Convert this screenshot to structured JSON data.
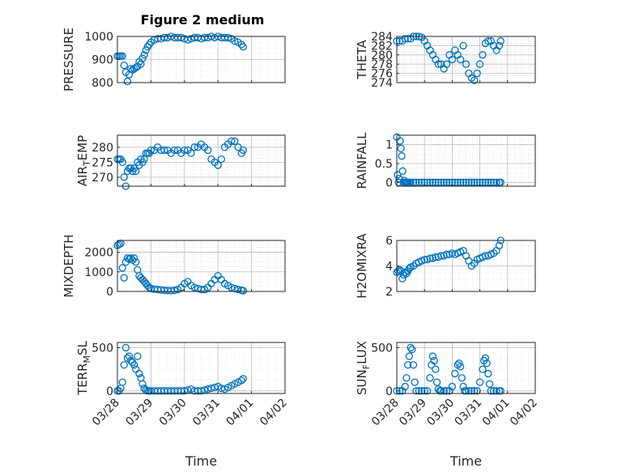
{
  "figure_title": "Figure 2 medium",
  "colors": {
    "marker": "#0072BD",
    "axes": "#262626",
    "grid": "#bdbdbd"
  },
  "chart_data": [
    {
      "id": "pressure",
      "type": "scatter",
      "title": "Figure 2 medium",
      "ylabel": {
        "base": "PRESSURE"
      },
      "xlabel": "",
      "ylim": [
        800,
        1000
      ],
      "yticks": [
        800,
        900,
        1000
      ],
      "ytick_labels": [
        "800",
        "900",
        "1000"
      ],
      "xlim": [
        0,
        5
      ],
      "xticks": [
        0,
        1,
        2,
        3,
        4,
        5
      ],
      "xtick_labels": [
        "03/28",
        "03/29",
        "03/30",
        "03/31",
        "04/01",
        "04/02"
      ],
      "grid": true,
      "minor_grid": true,
      "series": [
        {
          "x": [
            0.0,
            0.05,
            0.1,
            0.15,
            0.2,
            0.25,
            0.3,
            0.35,
            0.4,
            0.45,
            0.5,
            0.55,
            0.6,
            0.65,
            0.7,
            0.75,
            0.8,
            0.85,
            0.9,
            0.95,
            1.0,
            1.1,
            1.2,
            1.3,
            1.4,
            1.5,
            1.6,
            1.7,
            1.8,
            1.9,
            2.0,
            2.1,
            2.2,
            2.3,
            2.4,
            2.5,
            2.6,
            2.7,
            2.8,
            2.9,
            3.0,
            3.1,
            3.2,
            3.3,
            3.4,
            3.5,
            3.6,
            3.7,
            3.75
          ],
          "y": [
            915,
            915,
            915,
            915,
            875,
            845,
            805,
            835,
            860,
            855,
            860,
            865,
            870,
            890,
            880,
            905,
            920,
            940,
            955,
            965,
            975,
            985,
            990,
            990,
            995,
            995,
            1000,
            995,
            995,
            995,
            990,
            985,
            990,
            995,
            995,
            990,
            995,
            995,
            1000,
            995,
            1000,
            995,
            995,
            995,
            990,
            980,
            975,
            965,
            955
          ]
        }
      ]
    },
    {
      "id": "theta",
      "type": "scatter",
      "ylabel": {
        "base": "THETA"
      },
      "xlabel": "",
      "ylim": [
        274,
        284
      ],
      "yticks": [
        274,
        276,
        278,
        280,
        282,
        284
      ],
      "ytick_labels": [
        "274",
        "276",
        "278",
        "280",
        "282",
        "284"
      ],
      "xlim": [
        0,
        5
      ],
      "xticks": [
        0,
        1,
        2,
        3,
        4,
        5
      ],
      "xtick_labels": [
        "03/28",
        "03/29",
        "03/30",
        "03/31",
        "04/01",
        "04/02"
      ],
      "grid": true,
      "minor_grid": true,
      "series": [
        {
          "x": [
            0.0,
            0.1,
            0.2,
            0.3,
            0.4,
            0.5,
            0.6,
            0.7,
            0.8,
            0.9,
            1.0,
            1.1,
            1.2,
            1.3,
            1.4,
            1.5,
            1.6,
            1.7,
            1.8,
            1.9,
            2.0,
            2.1,
            2.2,
            2.3,
            2.4,
            2.5,
            2.6,
            2.7,
            2.8,
            2.9,
            3.0,
            3.1,
            3.2,
            3.3,
            3.4,
            3.5,
            3.6,
            3.7,
            3.75
          ],
          "y": [
            283,
            283,
            283,
            283.5,
            283.5,
            283.5,
            284,
            284,
            284,
            283.8,
            283,
            282,
            281,
            280,
            279,
            278,
            278,
            277,
            278,
            280,
            279,
            281,
            280,
            279,
            282,
            278,
            276,
            275,
            274.5,
            276,
            278,
            280,
            282.5,
            283,
            283,
            282,
            281,
            282,
            283
          ]
        }
      ]
    },
    {
      "id": "air_temp",
      "type": "scatter",
      "ylabel": {
        "base": "AIR",
        "sub": "T",
        "rest": "EMP"
      },
      "xlabel": "",
      "ylim": [
        267,
        284
      ],
      "yticks": [
        270,
        275,
        280
      ],
      "ytick_labels": [
        "270",
        "275",
        "280"
      ],
      "xlim": [
        0,
        5
      ],
      "xticks": [
        0,
        1,
        2,
        3,
        4,
        5
      ],
      "xtick_labels": [
        "03/28",
        "03/29",
        "03/30",
        "03/31",
        "04/01",
        "04/02"
      ],
      "grid": true,
      "minor_grid": true,
      "series": [
        {
          "x": [
            0.0,
            0.05,
            0.1,
            0.15,
            0.2,
            0.25,
            0.3,
            0.35,
            0.4,
            0.45,
            0.5,
            0.55,
            0.6,
            0.65,
            0.7,
            0.75,
            0.8,
            0.85,
            0.9,
            0.95,
            1.0,
            1.1,
            1.2,
            1.3,
            1.4,
            1.5,
            1.6,
            1.7,
            1.8,
            1.9,
            2.0,
            2.1,
            2.2,
            2.3,
            2.4,
            2.5,
            2.6,
            2.7,
            2.8,
            2.9,
            3.0,
            3.1,
            3.2,
            3.3,
            3.4,
            3.5,
            3.6,
            3.7,
            3.75
          ],
          "y": [
            276,
            276,
            276,
            275,
            270,
            267,
            272,
            273,
            273,
            272,
            273,
            272,
            275,
            274,
            276,
            275,
            276,
            278,
            278,
            278,
            279,
            279,
            280,
            279,
            279,
            279,
            278,
            279,
            279,
            278,
            279,
            279,
            278,
            280,
            280,
            281,
            280,
            279,
            276,
            275,
            274,
            276,
            280,
            281,
            282,
            282,
            280,
            278,
            279
          ]
        }
      ]
    },
    {
      "id": "rainfall",
      "type": "scatter",
      "ylabel": {
        "base": "RAINFALL"
      },
      "xlabel": "",
      "ylim": [
        -0.1,
        1.25
      ],
      "yticks": [
        0,
        0.5,
        1
      ],
      "ytick_labels": [
        "0",
        "0.5",
        "1"
      ],
      "xlim": [
        0,
        5
      ],
      "xticks": [
        0,
        1,
        2,
        3,
        4,
        5
      ],
      "xtick_labels": [
        "03/28",
        "03/29",
        "03/30",
        "03/31",
        "04/01",
        "04/02"
      ],
      "grid": true,
      "minor_grid": true,
      "series": [
        {
          "x": [
            0.0,
            0.03,
            0.06,
            0.09,
            0.12,
            0.15,
            0.18,
            0.21,
            0.24,
            0.27,
            0.3,
            0.33,
            0.36,
            0.4,
            0.45,
            0.5,
            0.6,
            0.7,
            0.8,
            0.9,
            1.0,
            1.1,
            1.2,
            1.3,
            1.4,
            1.5,
            1.6,
            1.7,
            1.8,
            1.9,
            2.0,
            2.1,
            2.2,
            2.3,
            2.4,
            2.5,
            2.6,
            2.7,
            2.8,
            2.9,
            3.0,
            3.1,
            3.2,
            3.3,
            3.4,
            3.5,
            3.6,
            3.7,
            3.75
          ],
          "y": [
            1.2,
            0.2,
            0.0,
            0.1,
            1.1,
            0.9,
            0.7,
            0.3,
            0.0,
            0.05,
            0.0,
            0.0,
            0.0,
            0,
            0,
            0,
            0,
            0,
            0,
            0,
            0,
            0,
            0,
            0,
            0,
            0,
            0,
            0,
            0,
            0,
            0,
            0,
            0,
            0,
            0,
            0,
            0,
            0,
            0,
            0,
            0,
            0,
            0,
            0,
            0,
            0,
            0,
            0,
            0
          ]
        }
      ]
    },
    {
      "id": "mixdepth",
      "type": "scatter",
      "ylabel": {
        "base": "MIXDEPTH"
      },
      "xlabel": "",
      "ylim": [
        0,
        2600
      ],
      "yticks": [
        0,
        1000,
        2000
      ],
      "ytick_labels": [
        "0",
        "1000",
        "2000"
      ],
      "xlim": [
        0,
        5
      ],
      "xticks": [
        0,
        1,
        2,
        3,
        4,
        5
      ],
      "xtick_labels": [
        "03/28",
        "03/29",
        "03/30",
        "03/31",
        "04/01",
        "04/02"
      ],
      "grid": true,
      "minor_grid": true,
      "series": [
        {
          "x": [
            0.0,
            0.05,
            0.1,
            0.15,
            0.2,
            0.25,
            0.3,
            0.35,
            0.4,
            0.45,
            0.5,
            0.55,
            0.6,
            0.65,
            0.7,
            0.75,
            0.8,
            0.85,
            0.9,
            0.95,
            1.0,
            1.1,
            1.2,
            1.3,
            1.4,
            1.5,
            1.6,
            1.7,
            1.8,
            1.9,
            2.0,
            2.1,
            2.2,
            2.3,
            2.4,
            2.5,
            2.6,
            2.7,
            2.8,
            2.9,
            3.0,
            3.1,
            3.2,
            3.3,
            3.4,
            3.5,
            3.6,
            3.7,
            3.75
          ],
          "y": [
            2350,
            2400,
            2450,
            1200,
            700,
            1500,
            1700,
            1650,
            1700,
            1600,
            1700,
            1500,
            1100,
            800,
            700,
            600,
            500,
            400,
            300,
            200,
            150,
            120,
            100,
            80,
            60,
            50,
            40,
            60,
            100,
            200,
            400,
            500,
            300,
            200,
            150,
            100,
            100,
            200,
            400,
            600,
            800,
            600,
            400,
            300,
            200,
            150,
            100,
            60,
            40
          ]
        }
      ]
    },
    {
      "id": "h2o",
      "type": "scatter",
      "ylabel": {
        "base": "H2OMIXRA"
      },
      "xlabel": "",
      "ylim": [
        2,
        6
      ],
      "yticks": [
        2,
        4,
        6
      ],
      "ytick_labels": [
        "2",
        "4",
        "6"
      ],
      "xlim": [
        0,
        5
      ],
      "xticks": [
        0,
        1,
        2,
        3,
        4,
        5
      ],
      "xtick_labels": [
        "03/28",
        "03/29",
        "03/30",
        "03/31",
        "04/01",
        "04/02"
      ],
      "grid": true,
      "minor_grid": true,
      "series": [
        {
          "x": [
            0.0,
            0.05,
            0.1,
            0.15,
            0.2,
            0.25,
            0.3,
            0.35,
            0.4,
            0.45,
            0.5,
            0.6,
            0.7,
            0.8,
            0.9,
            1.0,
            1.1,
            1.2,
            1.3,
            1.4,
            1.5,
            1.6,
            1.7,
            1.8,
            1.9,
            2.0,
            2.1,
            2.2,
            2.3,
            2.4,
            2.5,
            2.6,
            2.7,
            2.8,
            2.9,
            3.0,
            3.1,
            3.2,
            3.3,
            3.4,
            3.5,
            3.6,
            3.7,
            3.75
          ],
          "y": [
            3.5,
            3.6,
            3.7,
            3.6,
            3.0,
            3.3,
            3.5,
            3.4,
            3.6,
            3.8,
            3.9,
            4.0,
            4.2,
            4.3,
            4.4,
            4.5,
            4.5,
            4.6,
            4.6,
            4.7,
            4.7,
            4.8,
            4.8,
            4.9,
            4.9,
            5.0,
            4.9,
            5.0,
            5.1,
            5.2,
            4.8,
            4.4,
            4.0,
            4.2,
            4.5,
            4.6,
            4.7,
            4.8,
            4.8,
            4.9,
            5.0,
            5.2,
            5.6,
            6.0
          ]
        }
      ]
    },
    {
      "id": "terr_msl",
      "type": "scatter",
      "ylabel": {
        "base": "TERR",
        "sub": "M",
        "rest": "SL"
      },
      "xlabel": "Time",
      "ylim": [
        -30,
        560
      ],
      "yticks": [
        0,
        500
      ],
      "ytick_labels": [
        "0",
        "500"
      ],
      "xlim": [
        0,
        5
      ],
      "xticks": [
        0,
        1,
        2,
        3,
        4,
        5
      ],
      "xtick_labels": [
        "03/28",
        "03/29",
        "03/30",
        "03/31",
        "04/01",
        "04/02"
      ],
      "grid": true,
      "minor_grid": true,
      "series": [
        {
          "x": [
            0.0,
            0.05,
            0.1,
            0.15,
            0.2,
            0.25,
            0.3,
            0.35,
            0.4,
            0.45,
            0.5,
            0.55,
            0.6,
            0.65,
            0.7,
            0.75,
            0.8,
            0.85,
            0.9,
            0.95,
            1.0,
            1.1,
            1.2,
            1.3,
            1.4,
            1.5,
            1.6,
            1.7,
            1.8,
            1.9,
            2.0,
            2.1,
            2.2,
            2.3,
            2.4,
            2.5,
            2.6,
            2.7,
            2.8,
            2.9,
            3.0,
            3.1,
            3.2,
            3.3,
            3.4,
            3.5,
            3.6,
            3.7,
            3.75
          ],
          "y": [
            0,
            0,
            30,
            100,
            300,
            500,
            380,
            400,
            350,
            330,
            300,
            250,
            400,
            200,
            150,
            80,
            30,
            10,
            0,
            0,
            0,
            0,
            0,
            0,
            0,
            0,
            0,
            0,
            0,
            0,
            0,
            10,
            20,
            0,
            0,
            0,
            10,
            20,
            30,
            40,
            50,
            30,
            20,
            40,
            60,
            80,
            100,
            120,
            140
          ]
        }
      ]
    },
    {
      "id": "sun_flux",
      "type": "scatter",
      "ylabel": {
        "base": "SUN",
        "sub": "F",
        "rest": "LUX"
      },
      "xlabel": "Time",
      "ylim": [
        -30,
        560
      ],
      "yticks": [
        0,
        500
      ],
      "ytick_labels": [
        "0",
        "500"
      ],
      "xlim": [
        0,
        5
      ],
      "xticks": [
        0,
        1,
        2,
        3,
        4,
        5
      ],
      "xtick_labels": [
        "03/28",
        "03/29",
        "03/30",
        "03/31",
        "04/01",
        "04/02"
      ],
      "grid": true,
      "minor_grid": true,
      "series": [
        {
          "x": [
            0.0,
            0.1,
            0.2,
            0.3,
            0.35,
            0.4,
            0.45,
            0.5,
            0.55,
            0.6,
            0.65,
            0.7,
            0.8,
            0.9,
            1.0,
            1.1,
            1.2,
            1.25,
            1.3,
            1.35,
            1.4,
            1.45,
            1.5,
            1.55,
            1.6,
            1.7,
            1.8,
            1.9,
            2.0,
            2.1,
            2.2,
            2.25,
            2.3,
            2.35,
            2.4,
            2.45,
            2.5,
            2.6,
            2.7,
            2.8,
            2.9,
            3.0,
            3.1,
            3.15,
            3.2,
            3.25,
            3.3,
            3.35,
            3.4,
            3.5,
            3.6,
            3.7,
            3.75
          ],
          "y": [
            0,
            0,
            0,
            50,
            150,
            300,
            400,
            500,
            480,
            300,
            100,
            0,
            0,
            0,
            0,
            0,
            150,
            300,
            400,
            350,
            250,
            100,
            20,
            0,
            0,
            0,
            0,
            0,
            50,
            200,
            300,
            320,
            280,
            150,
            50,
            0,
            0,
            0,
            0,
            0,
            0,
            100,
            250,
            350,
            380,
            320,
            200,
            80,
            0,
            0,
            0,
            0,
            0
          ]
        }
      ]
    }
  ]
}
